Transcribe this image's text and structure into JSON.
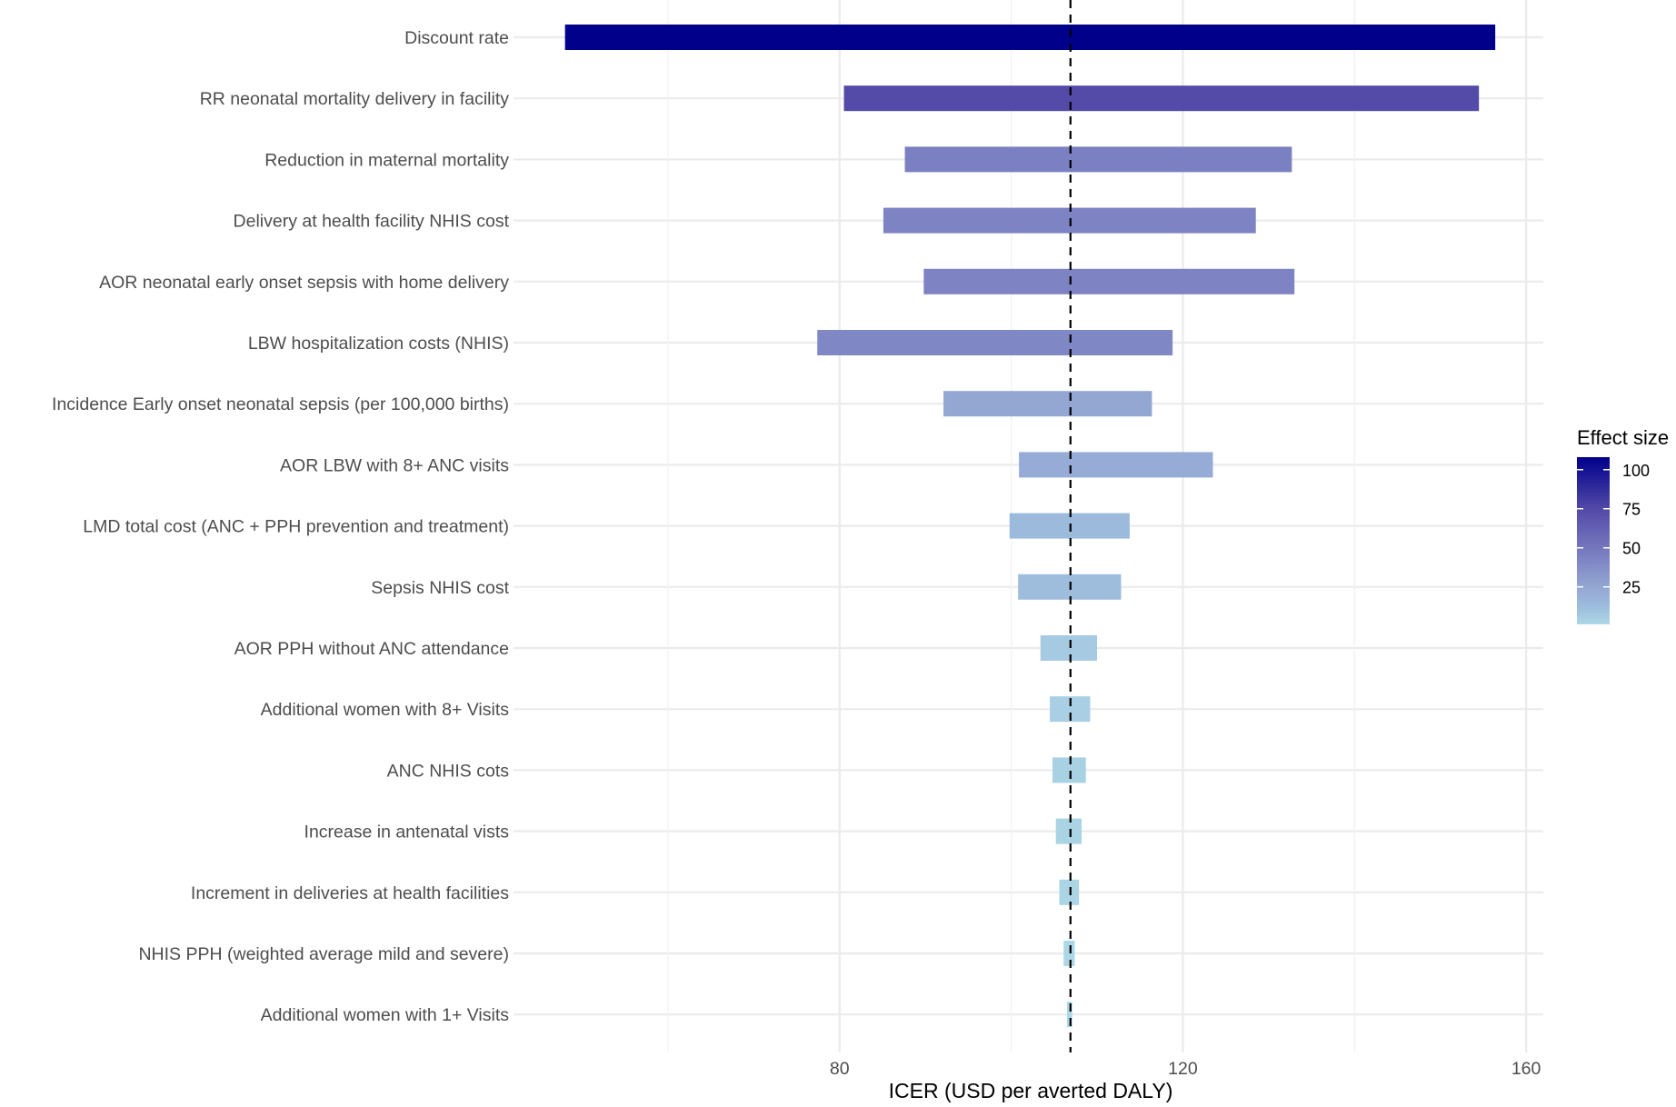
{
  "chart_data": {
    "type": "bar",
    "subtype": "tornado",
    "title": "",
    "xlabel": "ICER (USD per averted DALY)",
    "ylabel": "",
    "xlim": [
      42,
      162
    ],
    "x_ticks": [
      80,
      120,
      160
    ],
    "x_minor_ticks": [
      60,
      100,
      140
    ],
    "base_value": 106.9,
    "grid": true,
    "categories": [
      "Discount rate",
      "RR neonatal mortality delivery in facility",
      "Reduction in maternal mortality",
      "Delivery at health facility NHIS cost",
      "AOR neonatal early onset sepsis with home delivery",
      "LBW hospitalization costs (NHIS)",
      "Incidence Early onset neonatal sepsis (per 100,000 births)",
      "AOR LBW with 8+ ANC visits",
      "LMD total cost (ANC + PPH prevention and treatment)",
      "Sepsis NHIS cost",
      "AOR PPH without ANC attendance",
      "Additional women with 8+ Visits",
      "ANC NHIS cots",
      "Increase in antenatal vists",
      "Increment in deliveries at health facilities",
      "NHIS PPH (weighted average mild and severe)",
      "Additional women with 1+ Visits"
    ],
    "low": [
      48.0,
      80.5,
      87.6,
      85.1,
      89.8,
      77.4,
      92.1,
      100.9,
      99.8,
      100.8,
      103.4,
      104.5,
      104.8,
      105.2,
      105.6,
      106.1,
      106.5
    ],
    "high": [
      156.4,
      154.5,
      132.7,
      128.5,
      133.0,
      118.8,
      116.4,
      123.5,
      113.8,
      112.8,
      110.0,
      109.2,
      108.7,
      108.2,
      107.9,
      107.4,
      107.1
    ],
    "legend": {
      "title": "Effect size",
      "placement": "right",
      "ticks": [
        100,
        75,
        50,
        25
      ],
      "range": [
        1,
        108
      ],
      "low_color": "#ADD8E6",
      "high_color": "#00008B"
    }
  }
}
